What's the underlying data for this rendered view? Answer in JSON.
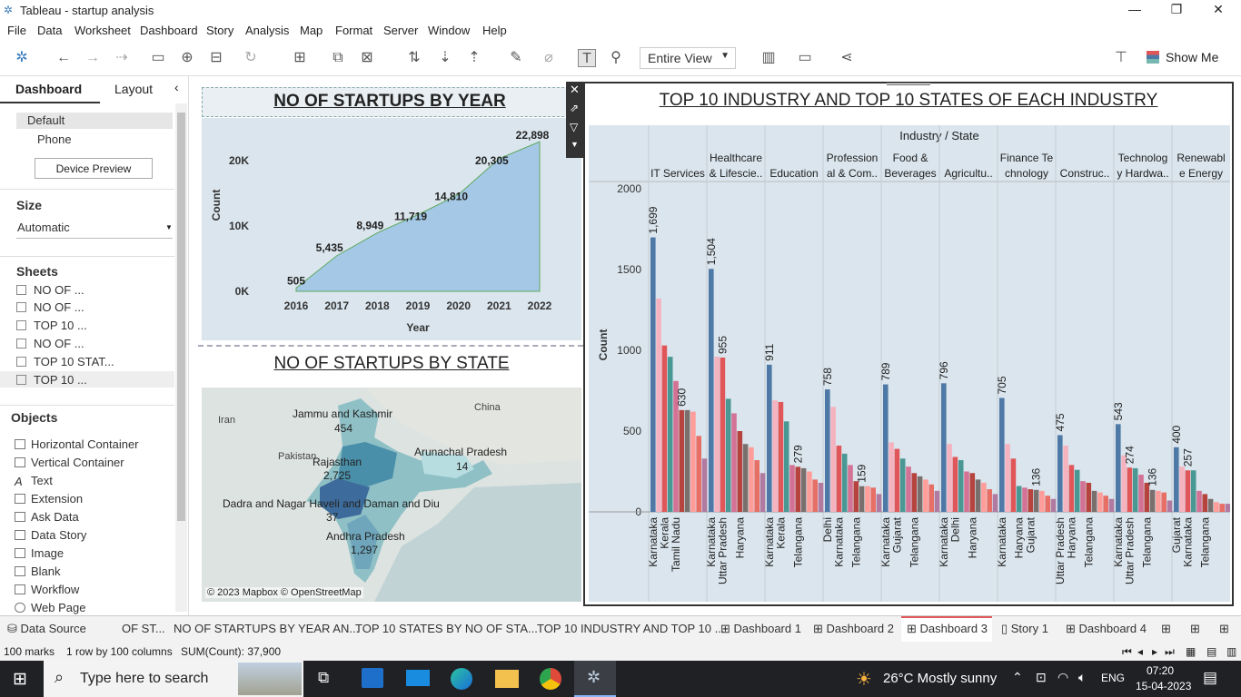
{
  "window": {
    "title": "Tableau - startup analysis"
  },
  "menu": [
    "File",
    "Data",
    "Worksheet",
    "Dashboard",
    "Story",
    "Analysis",
    "Map",
    "Format",
    "Server",
    "Window",
    "Help"
  ],
  "toolbar": {
    "view_select": "Entire View",
    "show_me": "Show Me"
  },
  "left_pane": {
    "tabs": [
      "Dashboard",
      "Layout"
    ],
    "devices": [
      "Default",
      "Phone"
    ],
    "device_preview": "Device Preview",
    "size_label": "Size",
    "size_value": "Automatic",
    "sheets_label": "Sheets",
    "sheets": [
      "NO OF ...",
      "NO OF ...",
      "TOP 10 ...",
      "NO OF ...",
      "TOP 10 STAT...",
      "TOP 10 ..."
    ],
    "objects_label": "Objects",
    "objects": [
      "Horizontal Container",
      "Vertical Container",
      "Text",
      "Extension",
      "Ask Data",
      "Data Story",
      "Image",
      "Blank",
      "Workflow",
      "Web Page"
    ]
  },
  "year_chart": {
    "title": "NO OF STARTUPS BY YEAR",
    "xlabel": "Year",
    "ylabel": "Count",
    "yticks": [
      "20K",
      "10K",
      "0K"
    ]
  },
  "state_map": {
    "title": "NO OF STARTUPS BY STATE",
    "labels": [
      {
        "name": "Jammu and Kashmir",
        "value": "454"
      },
      {
        "name": "Rajasthan",
        "value": "2,725"
      },
      {
        "name": "Arunachal Pradesh",
        "value": "14"
      },
      {
        "name": "Dadra and Nagar Haveli and Daman and Diu",
        "value": "37"
      },
      {
        "name": "Andhra Pradesh",
        "value": "1,297"
      }
    ],
    "countries": [
      "Iran",
      "Pakistan",
      "China"
    ],
    "attribution": "© 2023 Mapbox © OpenStreetMap"
  },
  "industry_chart": {
    "title": "TOP 10 INDUSTRY AND TOP 10 STATES OF EACH INDUSTRY",
    "header": "Industry / State",
    "ylabel": "Count",
    "yticks": [
      "2000",
      "1500",
      "1000",
      "500",
      "0"
    ],
    "industries": [
      {
        "l1": "",
        "l2": "IT Services"
      },
      {
        "l1": "Healthcare",
        "l2": "& Lifescie.."
      },
      {
        "l1": "",
        "l2": "Education"
      },
      {
        "l1": "Profession",
        "l2": "al & Com.."
      },
      {
        "l1": "Food &",
        "l2": "Beverages"
      },
      {
        "l1": "",
        "l2": "Agricultu.."
      },
      {
        "l1": "Finance Te",
        "l2": "chnology"
      },
      {
        "l1": "",
        "l2": "Construc.."
      },
      {
        "l1": "Technolog",
        "l2": "y Hardwa.."
      },
      {
        "l1": "Renewabl",
        "l2": "e Energy"
      }
    ]
  },
  "chart_data": [
    {
      "type": "area",
      "title": "NO OF STARTUPS BY YEAR",
      "xlabel": "Year",
      "ylabel": "Count",
      "x": [
        "2016",
        "2017",
        "2018",
        "2019",
        "2020",
        "2021",
        "2022"
      ],
      "values": [
        505,
        5435,
        8949,
        11719,
        14810,
        20305,
        22898
      ],
      "value_labels": [
        "505",
        "5,435",
        "8,949",
        "11,719",
        "14,810",
        "20,305",
        "22,898"
      ],
      "ylim": [
        0,
        25000
      ]
    },
    {
      "type": "bar",
      "title": "TOP 10 INDUSTRY AND TOP 10 STATES OF EACH INDUSTRY",
      "ylabel": "Count",
      "ylim": [
        0,
        2000
      ],
      "groups": [
        {
          "industry": "IT Services",
          "values": [
            1699,
            1320,
            1030,
            960,
            810,
            630,
            630,
            620,
            470,
            330
          ],
          "states": [
            "Karnataka",
            "",
            "Kerala",
            "",
            "Tamil Nadu",
            "",
            "",
            "",
            "",
            ""
          ],
          "label": "1,699",
          "label2_index": 5,
          "label2": "630"
        },
        {
          "industry": "Healthcare & Lifesciences",
          "values": [
            1504,
            960,
            955,
            700,
            610,
            500,
            420,
            400,
            320,
            240
          ],
          "states": [
            "Karnataka",
            "",
            "Uttar Pradesh",
            "",
            "",
            "Haryana",
            "",
            "",
            "",
            ""
          ],
          "label": "1,504",
          "label2_index": 2,
          "label2": "955"
        },
        {
          "industry": "Education",
          "values": [
            911,
            690,
            680,
            560,
            290,
            279,
            270,
            250,
            200,
            180
          ],
          "states": [
            "Karnataka",
            "",
            "Kerala",
            "",
            "",
            "Telangana",
            "",
            "",
            "",
            ""
          ],
          "label": "911",
          "label2_index": 5,
          "label2": "279"
        },
        {
          "industry": "Professional & Commercial",
          "values": [
            758,
            650,
            410,
            360,
            290,
            190,
            159,
            159,
            150,
            110
          ],
          "states": [
            "Delhi",
            "",
            "Karnataka",
            "",
            "",
            "Telangana",
            "",
            "",
            "",
            ""
          ],
          "label": "758",
          "label2_index": 6,
          "label2": "159"
        },
        {
          "industry": "Food & Beverages",
          "values": [
            789,
            430,
            390,
            330,
            280,
            240,
            220,
            200,
            170,
            130
          ],
          "states": [
            "Karnataka",
            "",
            "Gujarat",
            "",
            "",
            "Telangana",
            "",
            "",
            "",
            ""
          ],
          "label": "789",
          "label2_index": -1,
          "label2": ""
        },
        {
          "industry": "Agriculture",
          "values": [
            796,
            420,
            340,
            320,
            250,
            240,
            200,
            180,
            140,
            110
          ],
          "states": [
            "Karnataka",
            "",
            "Delhi",
            "",
            "",
            "Haryana",
            "",
            "",
            "",
            ""
          ],
          "label": "796",
          "label2_index": -1,
          "label2": ""
        },
        {
          "industry": "Finance Technology",
          "values": [
            705,
            420,
            330,
            160,
            150,
            140,
            136,
            130,
            100,
            80
          ],
          "states": [
            "Karnataka",
            "",
            "",
            "Haryana",
            "",
            "Gujarat",
            "",
            "",
            "",
            ""
          ],
          "label": "705",
          "label2_index": 6,
          "label2": "136"
        },
        {
          "industry": "Construction",
          "values": [
            475,
            410,
            290,
            260,
            190,
            180,
            130,
            120,
            100,
            80
          ],
          "states": [
            "Uttar Pradesh",
            "",
            "Haryana",
            "",
            "",
            "Telangana",
            "",
            "",
            "",
            ""
          ],
          "label": "475",
          "label2_index": -1,
          "label2": ""
        },
        {
          "industry": "Technology Hardware",
          "values": [
            543,
            350,
            274,
            270,
            230,
            180,
            136,
            130,
            120,
            70
          ],
          "states": [
            "Karnataka",
            "",
            "Uttar Pradesh",
            "",
            "",
            "Telangana",
            "",
            "",
            "",
            ""
          ],
          "label": "543",
          "label2_index": 2,
          "label2": "274",
          "label3_index": 6,
          "label3": "136"
        },
        {
          "industry": "Renewable Energy",
          "values": [
            400,
            280,
            257,
            257,
            130,
            110,
            80,
            60,
            50,
            50
          ],
          "states": [
            "Gujarat",
            "",
            "Karnataka",
            "",
            "",
            "Telangana",
            "",
            "",
            "",
            ""
          ],
          "label": "400",
          "label2_index": 2,
          "label2": "257"
        }
      ]
    }
  ],
  "bottom_tabs": [
    "Data Source",
    "OF ST...",
    "NO OF STARTUPS BY YEAR AN...",
    "TOP 10 STATES BY NO OF STA...",
    "TOP 10 INDUSTRY AND TOP 10 ...",
    "Dashboard 1",
    "Dashboard 2",
    "Dashboard 3",
    "Story 1",
    "Dashboard 4"
  ],
  "status": {
    "marks": "100 marks",
    "rows": "1 row by 100 columns",
    "sum": "SUM(Count): 37,900"
  },
  "taskbar": {
    "search": "Type here to search",
    "weather": "26°C  Mostly sunny",
    "lang": "ENG",
    "time": "07:20",
    "date": "15-04-2023"
  },
  "colors": {
    "blue": "#4e79a7",
    "area": "#a4c8e6",
    "bg": "#dae5ed"
  }
}
